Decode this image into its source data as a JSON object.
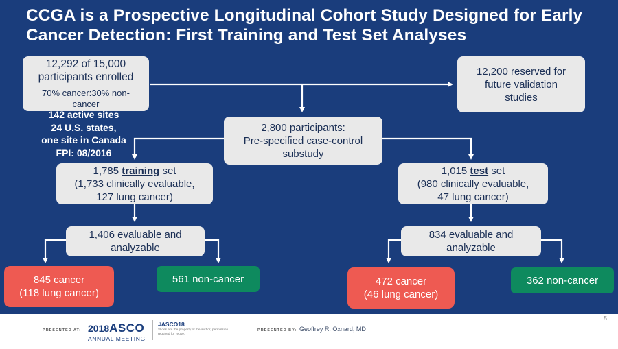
{
  "slide": {
    "title": "CCGA is a Prospective Longitudinal Cohort Study Designed for Early Cancer Detection: First Training and Test Set Analyses"
  },
  "enrolled": {
    "line1": "12,292 of 15,000",
    "line2": "participants enrolled",
    "pct_line1": "70% cancer:30% non-",
    "pct_line2": "cancer"
  },
  "sites": {
    "line1": "142 active sites",
    "line2": "24 U.S. states,",
    "line3": "one site in Canada",
    "line4": "FPI: 08/2016"
  },
  "reserved": {
    "line1": "12,200 reserved for",
    "line2": "future validation",
    "line3": "studies"
  },
  "substudy": {
    "line1": "2,800 participants:",
    "line2": "Pre-specified case-control",
    "line3": "substudy"
  },
  "training": {
    "count": "1,785",
    "keyword": "training",
    "suffix": "set",
    "line2": "(1,733 clinically evaluable,",
    "line3": "127 lung cancer)"
  },
  "test": {
    "count": "1,015",
    "keyword": "test",
    "suffix": "set",
    "line2": "(980 clinically evaluable,",
    "line3": "47 lung cancer)"
  },
  "train_eval": {
    "line1": "1,406 evaluable and",
    "line2": "analyzable"
  },
  "test_eval": {
    "line1": "834 evaluable and",
    "line2": "analyzable"
  },
  "train_cancer": {
    "line1": "845 cancer",
    "line2": "(118 lung cancer)"
  },
  "train_noncancer": {
    "label": "561 non-cancer"
  },
  "test_cancer": {
    "line1": "472 cancer",
    "line2": "(46 lung cancer)"
  },
  "test_noncancer": {
    "label": "362 non-cancer"
  },
  "footer": {
    "page_number": "5",
    "presented_at": "PRESENTED AT:",
    "logo_year": "2018",
    "logo_name": "ASCO",
    "logo_sub": "ANNUAL MEETING",
    "hashtag": "#ASCO18",
    "disclaimer": "Slides are the property of the author, permission required for reuse.",
    "presented_by": "PRESENTED BY:",
    "presenter": "Geoffrey R. Oxnard, MD"
  },
  "colors": {
    "background": "#1a3d7c",
    "box_gray": "#e9e9e9",
    "cancer_red": "#ee5a52",
    "noncancer_green": "#0e8a5e",
    "connector": "#ffffff"
  }
}
